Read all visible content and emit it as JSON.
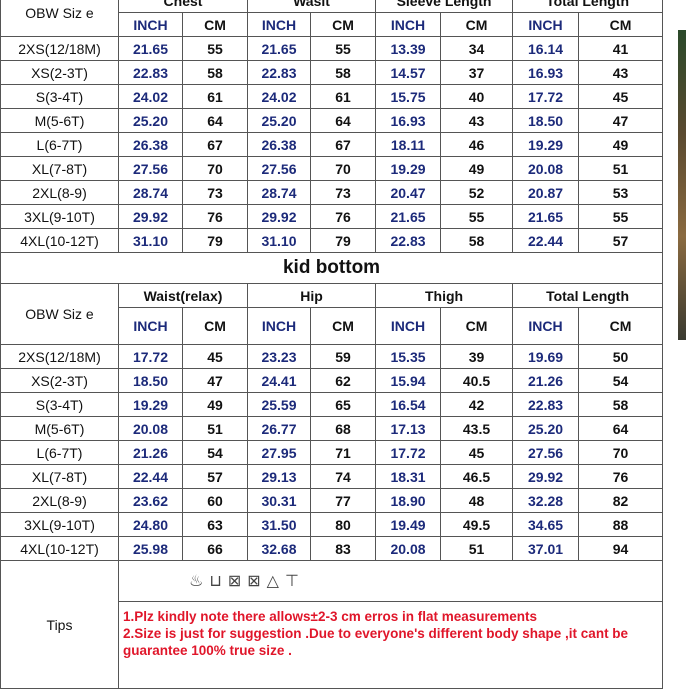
{
  "top": {
    "size_label": "OBW  Siz e",
    "groups": [
      "Chest",
      "Wasit",
      "Sleeve Length",
      "Total Length"
    ],
    "unit_inch": "INCH",
    "unit_cm": "CM",
    "rows": [
      [
        "2XS(12/18M)",
        "21.65",
        "55",
        "21.65",
        "55",
        "13.39",
        "34",
        "16.14",
        "41"
      ],
      [
        "XS(2-3T)",
        "22.83",
        "58",
        "22.83",
        "58",
        "14.57",
        "37",
        "16.93",
        "43"
      ],
      [
        "S(3-4T)",
        "24.02",
        "61",
        "24.02",
        "61",
        "15.75",
        "40",
        "17.72",
        "45"
      ],
      [
        "M(5-6T)",
        "25.20",
        "64",
        "25.20",
        "64",
        "16.93",
        "43",
        "18.50",
        "47"
      ],
      [
        "L(6-7T)",
        "26.38",
        "67",
        "26.38",
        "67",
        "18.11",
        "46",
        "19.29",
        "49"
      ],
      [
        "XL(7-8T)",
        "27.56",
        "70",
        "27.56",
        "70",
        "19.29",
        "49",
        "20.08",
        "51"
      ],
      [
        "2XL(8-9)",
        "28.74",
        "73",
        "28.74",
        "73",
        "20.47",
        "52",
        "20.87",
        "53"
      ],
      [
        "3XL(9-10T)",
        "29.92",
        "76",
        "29.92",
        "76",
        "21.65",
        "55",
        "21.65",
        "55"
      ],
      [
        "4XL(10-12T)",
        "31.10",
        "79",
        "31.10",
        "79",
        "22.83",
        "58",
        "22.44",
        "57"
      ]
    ]
  },
  "bottom": {
    "title": "kid bottom",
    "size_label": "OBW  Siz e",
    "groups": [
      "Waist(relax)",
      "Hip",
      "Thigh",
      "Total Length"
    ],
    "unit_inch": "INCH",
    "unit_cm": "CM",
    "rows": [
      [
        "2XS(12/18M)",
        "17.72",
        "45",
        "23.23",
        "59",
        "15.35",
        "39",
        "19.69",
        "50"
      ],
      [
        "XS(2-3T)",
        "18.50",
        "47",
        "24.41",
        "62",
        "15.94",
        "40.5",
        "21.26",
        "54"
      ],
      [
        "S(3-4T)",
        "19.29",
        "49",
        "25.59",
        "65",
        "16.54",
        "42",
        "22.83",
        "58"
      ],
      [
        "M(5-6T)",
        "20.08",
        "51",
        "26.77",
        "68",
        "17.13",
        "43.5",
        "25.20",
        "64"
      ],
      [
        "L(6-7T)",
        "21.26",
        "54",
        "27.95",
        "71",
        "17.72",
        "45",
        "27.56",
        "70"
      ],
      [
        "XL(7-8T)",
        "22.44",
        "57",
        "29.13",
        "74",
        "18.31",
        "46.5",
        "29.92",
        "76"
      ],
      [
        "2XL(8-9)",
        "23.62",
        "60",
        "30.31",
        "77",
        "18.90",
        "48",
        "32.28",
        "82"
      ],
      [
        "3XL(9-10T)",
        "24.80",
        "63",
        "31.50",
        "80",
        "19.49",
        "49.5",
        "34.65",
        "88"
      ],
      [
        "4XL(10-12T)",
        "25.98",
        "66",
        "32.68",
        "83",
        "20.08",
        "51",
        "37.01",
        "94"
      ]
    ]
  },
  "tips": {
    "label": "Tips",
    "care_icons": [
      "hand-wash-icon",
      "wash-tub-icon",
      "no-tumble-dry-icon",
      "no-dryer-icon",
      "no-bleach-icon",
      "hang-dry-icon"
    ],
    "lines": [
      "1.Plz kindly note there allows±2-3 cm erros in flat  measurements",
      "2.Size is just for suggestion .Due to everyone's different body shape ,it cant be guarantee 100% true size ."
    ],
    "color": "#e0162a"
  }
}
